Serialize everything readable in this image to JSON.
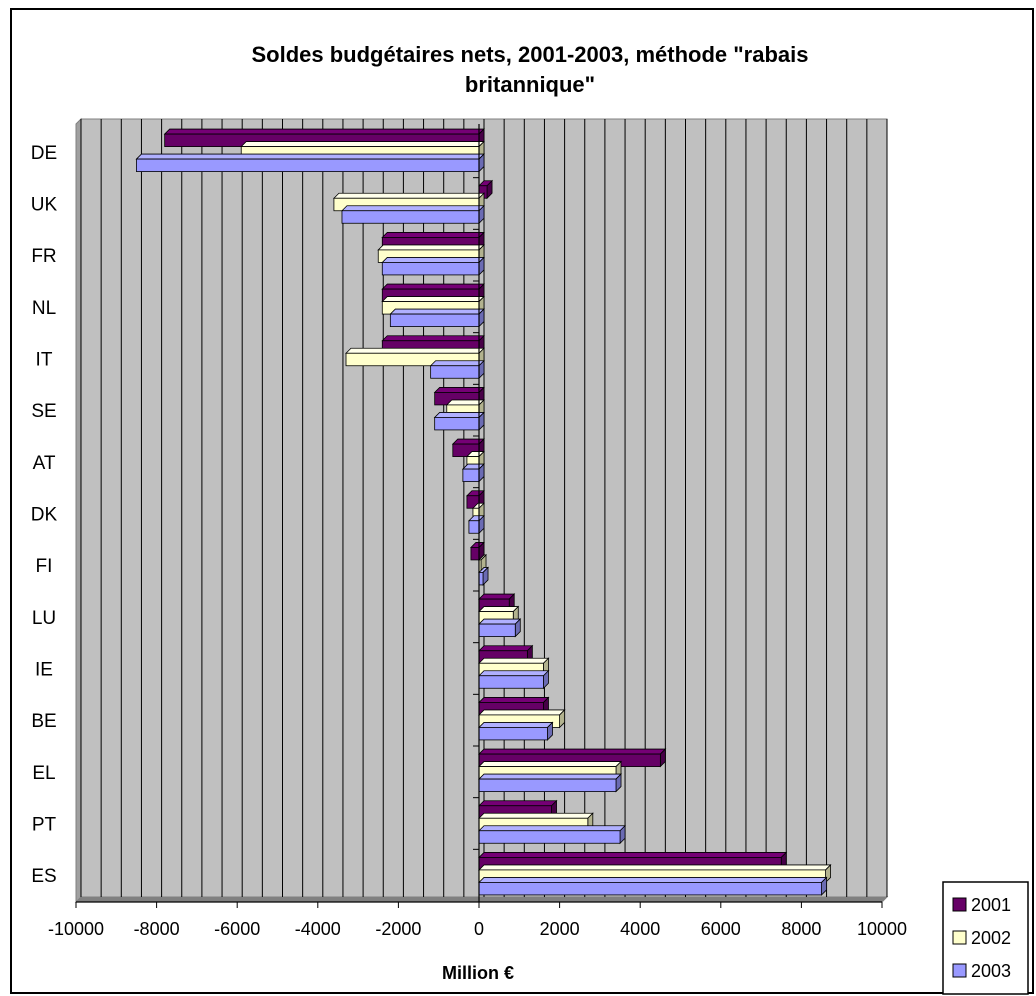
{
  "chart_data": {
    "type": "bar",
    "orientation": "horizontal",
    "title_line1": "Soldes budgétaires nets, 2001-2003, méthode \"rabais",
    "title_line2": "britannique\"",
    "xlabel": "Million €",
    "ylabel": "",
    "xlim": [
      -10000,
      10000
    ],
    "x_ticks": [
      "-10000",
      "-8000",
      "-6000",
      "-4000",
      "-2000",
      "0",
      "2000",
      "4000",
      "6000",
      "8000",
      "10000"
    ],
    "grid": true,
    "legend_position": "bottom-right",
    "categories": [
      "DE",
      "UK",
      "FR",
      "NL",
      "IT",
      "SE",
      "AT",
      "DK",
      "FI",
      "LU",
      "IE",
      "BE",
      "EL",
      "PT",
      "ES"
    ],
    "series": [
      {
        "name": "2001",
        "color": "#660066",
        "values": [
          -7800,
          200,
          -2400,
          -2400,
          -2400,
          -1100,
          -650,
          -300,
          -200,
          750,
          1200,
          1600,
          4500,
          1800,
          7500
        ]
      },
      {
        "name": "2002",
        "color": "#ffffcc",
        "values": [
          -5900,
          -3600,
          -2500,
          -2400,
          -3300,
          -800,
          -300,
          -150,
          50,
          850,
          1600,
          2000,
          3400,
          2700,
          8600
        ]
      },
      {
        "name": "2003",
        "color": "#9999ff",
        "values": [
          -8500,
          -3400,
          -2400,
          -2200,
          -1200,
          -1100,
          -400,
          -250,
          100,
          900,
          1600,
          1700,
          3400,
          3500,
          8500
        ]
      }
    ],
    "plot_background": "#c0c0c0"
  }
}
